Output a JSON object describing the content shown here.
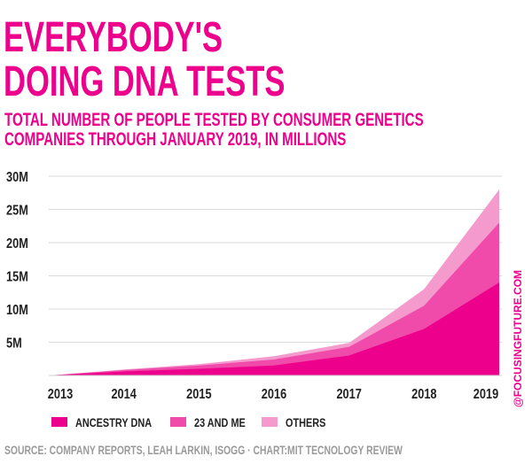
{
  "header": {
    "title_line1": "EVERYBODY'S",
    "title_line2": "DOING DNA TESTS",
    "subtitle_line1": "TOTAL NUMBER OF PEOPLE TESTED BY CONSUMER GENETICS",
    "subtitle_line2": "COMPANIES THROUGH JANUARY 2019, IN MILLIONS"
  },
  "source": "SOURCE: COMPANY REPORTS, LEAH LARKIN, ISOGG · CHART:MIT TECNOLOGY REVIEW",
  "watermark": "@FOCUSINGFUTURE.COM",
  "chart_data": {
    "type": "area",
    "stacked": true,
    "title": "",
    "xlabel": "",
    "ylabel": "",
    "x": [
      "2013",
      "2014",
      "2015",
      "2016",
      "2017",
      "2018",
      "2019"
    ],
    "y_ticks": [
      "5M",
      "10M",
      "15M",
      "20M",
      "25M",
      "30M"
    ],
    "ylim": [
      0,
      30
    ],
    "grid": true,
    "legend_position": "bottom-left",
    "series": [
      {
        "name": "ANCESTRY DNA",
        "color": "#ec008c",
        "values": [
          0,
          0.6,
          1.0,
          1.5,
          3.0,
          7.0,
          14.0
        ]
      },
      {
        "name": "23 AND ME",
        "color": "#f04aaa",
        "values": [
          0,
          0.2,
          0.5,
          0.9,
          1.3,
          3.5,
          9.0
        ]
      },
      {
        "name": "OTHERS",
        "color": "#f59acd",
        "values": [
          0,
          0.1,
          0.2,
          0.5,
          0.6,
          2.5,
          5.0
        ]
      }
    ]
  }
}
